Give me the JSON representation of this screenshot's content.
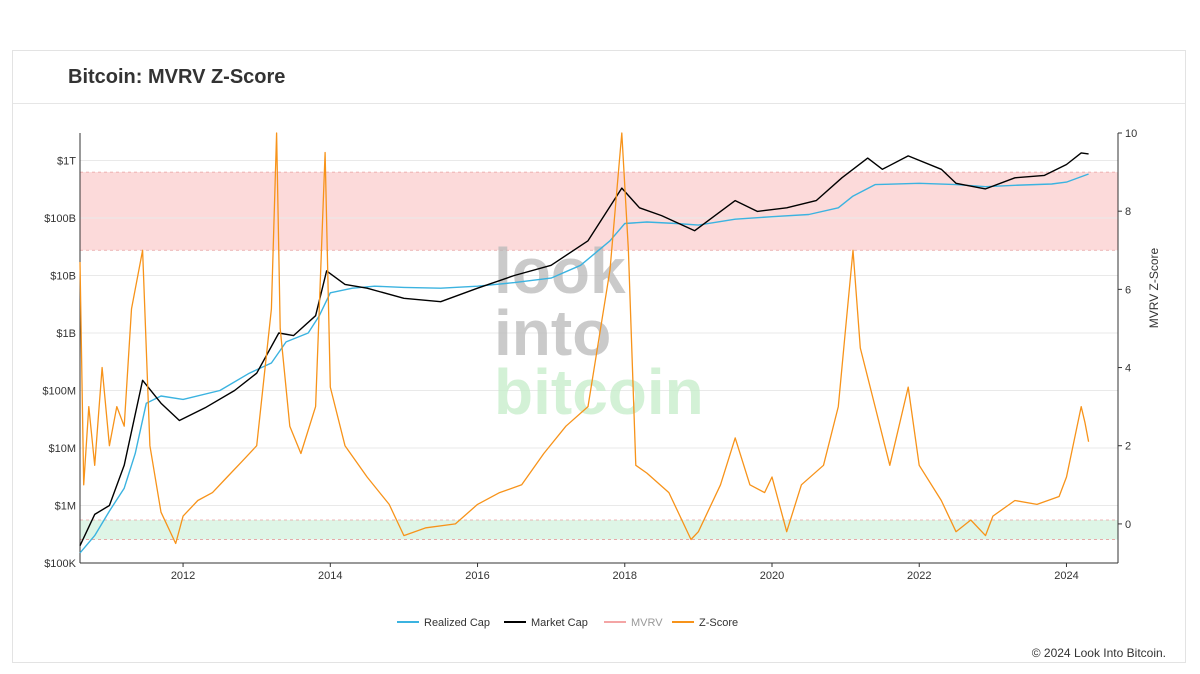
{
  "header": {
    "title": "Bitcoin: MVRV Z-Score"
  },
  "footer": {
    "copyright": "© 2024 Look Into Bitcoin."
  },
  "watermark": {
    "line1": "look",
    "line2": "into",
    "line3": "bitcoin"
  },
  "colors": {
    "realized_cap": "#3bb3e0",
    "market_cap": "#000000",
    "mvrv": "#f4a5a5",
    "z_score": "#f7931a",
    "red_zone": "#fbd4d4",
    "green_zone": "#d8f3e2"
  },
  "chart_data": {
    "type": "line",
    "title": "Bitcoin: MVRV Z-Score",
    "x_ticks": [
      "2012",
      "2014",
      "2016",
      "2018",
      "2020",
      "2022",
      "2024"
    ],
    "x_range": [
      2010.6,
      2024.7
    ],
    "left_axis": {
      "scale": "log",
      "range": [
        100000,
        3000000000000
      ],
      "tick_values": [
        100000,
        1000000,
        10000000,
        100000000,
        1000000000,
        10000000000,
        100000000000,
        1000000000000
      ],
      "tick_labels": [
        "$100K",
        "$1M",
        "$10M",
        "$100M",
        "$1B",
        "$10B",
        "$100B",
        "$1T"
      ]
    },
    "right_axis": {
      "label": "MVRV Z-Score",
      "range": [
        -1,
        10
      ],
      "tick_values": [
        0,
        2,
        4,
        6,
        8,
        10
      ],
      "tick_labels": [
        "0",
        "2",
        "4",
        "6",
        "8",
        "10"
      ]
    },
    "zones": [
      {
        "name": "red-zone",
        "axis": "right",
        "from": 7,
        "to": 9,
        "color": "#fbd4d4"
      },
      {
        "name": "green-zone",
        "axis": "right",
        "from": -0.4,
        "to": 0.1,
        "color": "#d8f3e2"
      }
    ],
    "legend": [
      "Realized Cap",
      "Market Cap",
      "MVRV",
      "Z-Score"
    ],
    "series": [
      {
        "name": "Realized Cap",
        "axis": "left",
        "color": "#3bb3e0",
        "x": [
          2010.6,
          2010.8,
          2011.0,
          2011.2,
          2011.35,
          2011.5,
          2011.7,
          2012.0,
          2012.5,
          2012.9,
          2013.2,
          2013.4,
          2013.7,
          2013.85,
          2014.0,
          2014.3,
          2014.6,
          2015.0,
          2015.5,
          2016.0,
          2016.5,
          2017.0,
          2017.4,
          2017.8,
          2018.0,
          2018.3,
          2018.7,
          2019.0,
          2019.5,
          2020.0,
          2020.5,
          2020.9,
          2021.1,
          2021.4,
          2022.0,
          2022.5,
          2022.9,
          2023.3,
          2023.8,
          2024.0,
          2024.3
        ],
        "y": [
          150000,
          300000,
          800000,
          2000000,
          8000000,
          60000000,
          80000000,
          70000000,
          100000000,
          200000000,
          300000000,
          700000000,
          1000000000,
          2000000000,
          5000000000,
          6000000000,
          6500000000,
          6200000000,
          6000000000,
          6500000000,
          7500000000,
          9000000000,
          15000000000,
          40000000000,
          80000000000,
          85000000000,
          80000000000,
          75000000000,
          95000000000,
          105000000000,
          115000000000,
          150000000000,
          240000000000,
          380000000000,
          400000000000,
          380000000000,
          350000000000,
          370000000000,
          390000000000,
          420000000000,
          580000000000
        ]
      },
      {
        "name": "Market Cap",
        "axis": "left",
        "color": "#000000",
        "x": [
          2010.6,
          2010.8,
          2011.0,
          2011.2,
          2011.45,
          2011.7,
          2011.95,
          2012.3,
          2012.7,
          2013.0,
          2013.3,
          2013.5,
          2013.8,
          2013.95,
          2014.2,
          2014.5,
          2015.0,
          2015.5,
          2016.0,
          2016.5,
          2017.0,
          2017.5,
          2017.96,
          2018.2,
          2018.5,
          2018.95,
          2019.5,
          2019.8,
          2020.2,
          2020.6,
          2020.95,
          2021.3,
          2021.5,
          2021.85,
          2022.3,
          2022.5,
          2022.9,
          2023.3,
          2023.7,
          2024.0,
          2024.2,
          2024.3
        ],
        "y": [
          200000,
          700000,
          1000000,
          5000000,
          150000000,
          60000000,
          30000000,
          50000000,
          100000000,
          200000000,
          1000000000,
          900000000,
          2000000000,
          12000000000,
          7000000000,
          6000000000,
          4000000000,
          3500000000,
          6000000000,
          10000000000,
          15000000000,
          40000000000,
          330000000000,
          150000000000,
          110000000000,
          60000000000,
          200000000000,
          130000000000,
          150000000000,
          200000000000,
          500000000000,
          1100000000000,
          700000000000,
          1200000000000,
          700000000000,
          400000000000,
          320000000000,
          500000000000,
          550000000000,
          850000000000,
          1350000000000,
          1300000000000
        ]
      },
      {
        "name": "Z-Score",
        "axis": "right",
        "color": "#f7931a",
        "x": [
          2010.6,
          2010.65,
          2010.72,
          2010.8,
          2010.9,
          2011.0,
          2011.1,
          2011.2,
          2011.3,
          2011.45,
          2011.55,
          2011.7,
          2011.9,
          2012.0,
          2012.2,
          2012.4,
          2012.6,
          2012.8,
          2013.0,
          2013.2,
          2013.27,
          2013.32,
          2013.45,
          2013.6,
          2013.8,
          2013.93,
          2014.0,
          2014.2,
          2014.5,
          2014.8,
          2015.0,
          2015.3,
          2015.7,
          2016.0,
          2016.3,
          2016.6,
          2016.9,
          2017.2,
          2017.5,
          2017.8,
          2017.96,
          2018.05,
          2018.15,
          2018.3,
          2018.6,
          2018.9,
          2019.0,
          2019.3,
          2019.5,
          2019.7,
          2019.9,
          2020.0,
          2020.2,
          2020.4,
          2020.7,
          2020.9,
          2021.0,
          2021.1,
          2021.2,
          2021.4,
          2021.6,
          2021.85,
          2022.0,
          2022.3,
          2022.5,
          2022.7,
          2022.9,
          2023.0,
          2023.3,
          2023.6,
          2023.9,
          2024.0,
          2024.2,
          2024.25,
          2024.3
        ],
        "y": [
          6.7,
          1.0,
          3.0,
          1.5,
          4.0,
          2.0,
          3.0,
          2.5,
          5.5,
          7.0,
          2.0,
          0.3,
          -0.5,
          0.2,
          0.6,
          0.8,
          1.2,
          1.6,
          2.0,
          5.5,
          10.0,
          5.0,
          2.5,
          1.8,
          3.0,
          9.5,
          3.5,
          2.0,
          1.2,
          0.5,
          -0.3,
          -0.1,
          0.0,
          0.5,
          0.8,
          1.0,
          1.8,
          2.5,
          3.0,
          6.5,
          10.0,
          7.0,
          1.5,
          1.3,
          0.8,
          -0.4,
          -0.2,
          1.0,
          2.2,
          1.0,
          0.8,
          1.2,
          -0.2,
          1.0,
          1.5,
          3.0,
          5.0,
          7.0,
          4.5,
          3.0,
          1.5,
          3.5,
          1.5,
          0.6,
          -0.2,
          0.1,
          -0.3,
          0.2,
          0.6,
          0.5,
          0.7,
          1.2,
          3.0,
          2.6,
          2.1
        ]
      }
    ]
  }
}
